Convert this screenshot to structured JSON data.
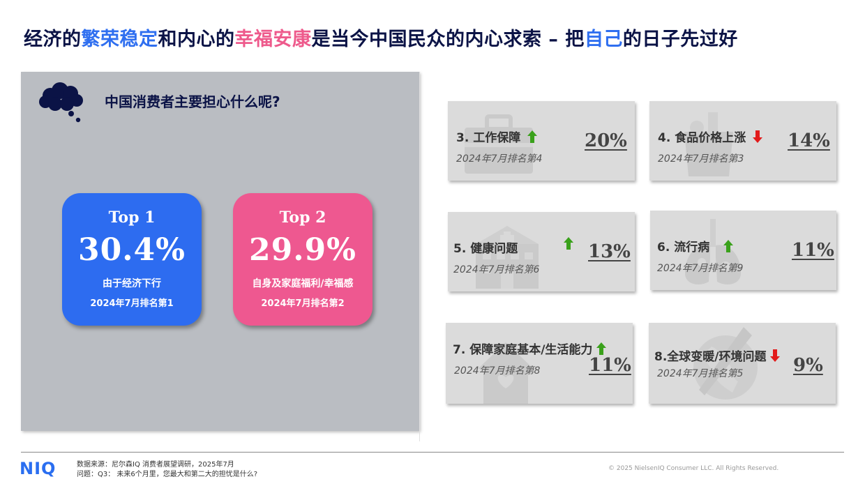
{
  "title": {
    "p1": "经济的",
    "h1": "繁荣稳定",
    "p2": "和内心的",
    "h2": "幸福安康",
    "p3": "是当今中国民众的内心求索 – 把",
    "h3": "自己",
    "p4": "的日子先过好"
  },
  "panel": {
    "question": "中国消费者主要担心什么呢?",
    "top_cards": [
      {
        "rank": "Top 1",
        "percent": "30.4%",
        "reason": "由于经济下行",
        "rank_date": "2024年7月排名第1"
      },
      {
        "rank": "Top 2",
        "percent": "29.9%",
        "reason": "自身及家庭福利/幸福感",
        "rank_date": "2024年7月排名第2"
      }
    ]
  },
  "concerns": [
    {
      "label": "3. 工作保障",
      "trend": "up",
      "prev_rank": "2024年7月排名第4",
      "percent": "20%"
    },
    {
      "label": "4. 食品价格上涨",
      "trend": "down",
      "prev_rank": "2024年7月排名第3",
      "percent": "14%"
    },
    {
      "label": "5. 健康问题",
      "trend": "up",
      "prev_rank": "2024年7月排名第6",
      "percent": "13%"
    },
    {
      "label": "6. 流行病",
      "trend": "up",
      "prev_rank": "2024年7月排名第9",
      "percent": "11%"
    },
    {
      "label": "7. 保障家庭基本/生活能力",
      "trend": "up",
      "prev_rank": "2024年7月排名第8",
      "percent": "11%"
    },
    {
      "label": "8.全球变暖/环境问题",
      "trend": "down",
      "prev_rank": "2024年7月排名第5",
      "percent": "9%"
    }
  ],
  "footer": {
    "logo": "NIQ",
    "source": "数据来源：尼尔森IQ 消费者展望调研，2025年7月",
    "question": "问题：Q3：  未来6个月里，您最大和第二大的担忧是什么?",
    "copyright": "© 2025 NielsenIQ Consumer LLC. All Rights Reserved."
  },
  "colors": {
    "navy": "#0b1346",
    "blue": "#2d6cf0",
    "pink": "#ee5890",
    "up_arrow": "#3aa11b",
    "down_arrow": "#e21b1b"
  },
  "icons": [
    "thought-cloud-icon",
    "briefcase-icon",
    "grocery-bag-icon",
    "hospital-icon",
    "virus-icon",
    "house-icon",
    "globe-icon",
    "up-arrow-icon",
    "down-arrow-icon"
  ]
}
